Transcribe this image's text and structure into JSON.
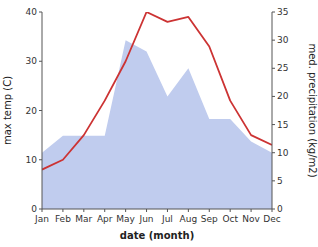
{
  "chart_data": {
    "type": "line",
    "categories": [
      "Jan",
      "Feb",
      "Mar",
      "Apr",
      "May",
      "Jun",
      "Jul",
      "Aug",
      "Sep",
      "Oct",
      "Nov",
      "Dec"
    ],
    "xlabel": "date (month)",
    "ylabel": "max temp (C)",
    "y2label": "med. precipitation (kg/m2)",
    "ylim": [
      0,
      40
    ],
    "yticks": [
      0,
      10,
      20,
      30,
      40
    ],
    "y2lim": [
      0,
      35
    ],
    "y2ticks": [
      0,
      5,
      10,
      15,
      20,
      25,
      30,
      35
    ],
    "grid": false,
    "series": [
      {
        "type": "line",
        "color": "#cc3333",
        "values": [
          8,
          10,
          15,
          22,
          30,
          40,
          38,
          39,
          33,
          22,
          15,
          13
        ]
      },
      {
        "type": "area",
        "color": "#c0ccee",
        "axis": "y2",
        "values": [
          10,
          13,
          13,
          13,
          30,
          28,
          20,
          25,
          16,
          16,
          12,
          10
        ]
      }
    ]
  }
}
